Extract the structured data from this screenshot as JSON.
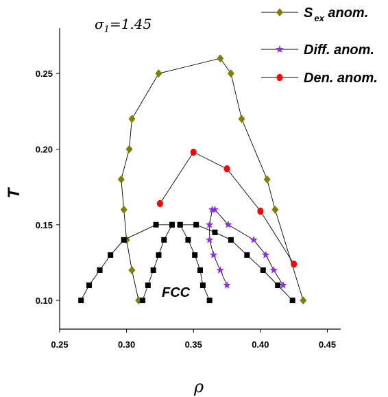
{
  "chart_data": {
    "type": "scatter",
    "annotation_sigma": "σ",
    "annotation_sigma_sub": "1",
    "annotation_sigma_value": "=1.45",
    "annotation_phase": "FCC",
    "xlabel": "ρ",
    "ylabel": "T",
    "xlim": [
      0.25,
      0.46
    ],
    "ylim": [
      0.081,
      0.28
    ],
    "xticks": [
      "0.25",
      "0.30",
      "0.35",
      "0.40",
      "0.45"
    ],
    "xtick_values": [
      0.25,
      0.3,
      0.35,
      0.4,
      0.45
    ],
    "yticks": [
      "0.10",
      "0.15",
      "0.20",
      "0.25"
    ],
    "ytick_values": [
      0.1,
      0.15,
      0.2,
      0.25
    ],
    "legend": {
      "position": "top-right",
      "entries": [
        {
          "label": "S",
          "sub": "ex",
          "suffix": " anom.",
          "marker": "diamond",
          "color": "#7f7f00"
        },
        {
          "label": "Diff. anom.",
          "sub": "",
          "suffix": "",
          "marker": "star",
          "color": "#8b2be2"
        },
        {
          "label": "Den. anom.",
          "sub": "",
          "suffix": "",
          "marker": "circle",
          "color": "#ff0000"
        }
      ]
    },
    "series": [
      {
        "name": "S_ex anom.",
        "marker": "diamond",
        "color": "#7f7f00",
        "points": [
          [
            0.309,
            0.1
          ],
          [
            0.304,
            0.12
          ],
          [
            0.3,
            0.14
          ],
          [
            0.298,
            0.16
          ],
          [
            0.296,
            0.18
          ],
          [
            0.302,
            0.2
          ],
          [
            0.304,
            0.22
          ],
          [
            0.324,
            0.25
          ],
          [
            0.37,
            0.26
          ],
          [
            0.378,
            0.25
          ],
          [
            0.386,
            0.22
          ],
          [
            0.405,
            0.18
          ],
          [
            0.411,
            0.16
          ],
          [
            0.432,
            0.1
          ]
        ]
      },
      {
        "name": "Den. anom.",
        "marker": "circle",
        "color": "#ff0000",
        "points": [
          [
            0.325,
            0.164
          ],
          [
            0.35,
            0.198
          ],
          [
            0.375,
            0.187
          ],
          [
            0.4,
            0.159
          ],
          [
            0.425,
            0.124
          ]
        ]
      },
      {
        "name": "Diff. anom. (low)",
        "marker": "star",
        "color": "#8b2be2",
        "points": [
          [
            0.364,
            0.16
          ],
          [
            0.362,
            0.15
          ],
          [
            0.362,
            0.14
          ],
          [
            0.365,
            0.13
          ],
          [
            0.37,
            0.12
          ],
          [
            0.375,
            0.11
          ]
        ]
      },
      {
        "name": "Diff. anom. (high)",
        "marker": "star",
        "color": "#8b2be2",
        "points": [
          [
            0.366,
            0.16
          ],
          [
            0.376,
            0.15
          ],
          [
            0.395,
            0.14
          ],
          [
            0.404,
            0.13
          ],
          [
            0.41,
            0.12
          ],
          [
            0.417,
            0.11
          ]
        ]
      },
      {
        "name": "FCC left",
        "marker": "square",
        "color": "#000000",
        "points": [
          [
            0.266,
            0.1
          ],
          [
            0.272,
            0.11
          ],
          [
            0.28,
            0.12
          ],
          [
            0.288,
            0.13
          ],
          [
            0.298,
            0.14
          ],
          [
            0.322,
            0.15
          ],
          [
            0.334,
            0.15
          ]
        ]
      },
      {
        "name": "FCC inner left",
        "marker": "square",
        "color": "#000000",
        "points": [
          [
            0.312,
            0.1
          ],
          [
            0.316,
            0.11
          ],
          [
            0.32,
            0.12
          ],
          [
            0.324,
            0.13
          ],
          [
            0.328,
            0.14
          ],
          [
            0.334,
            0.15
          ]
        ]
      },
      {
        "name": "FCC inner right",
        "marker": "square",
        "color": "#000000",
        "points": [
          [
            0.34,
            0.15
          ],
          [
            0.346,
            0.14
          ],
          [
            0.351,
            0.13
          ],
          [
            0.355,
            0.12
          ],
          [
            0.357,
            0.11
          ],
          [
            0.362,
            0.1
          ]
        ]
      },
      {
        "name": "FCC right",
        "marker": "square",
        "color": "#000000",
        "points": [
          [
            0.34,
            0.15
          ],
          [
            0.352,
            0.15
          ],
          [
            0.366,
            0.145
          ],
          [
            0.378,
            0.14
          ],
          [
            0.39,
            0.13
          ],
          [
            0.402,
            0.12
          ],
          [
            0.413,
            0.11
          ],
          [
            0.424,
            0.1
          ]
        ]
      }
    ]
  }
}
